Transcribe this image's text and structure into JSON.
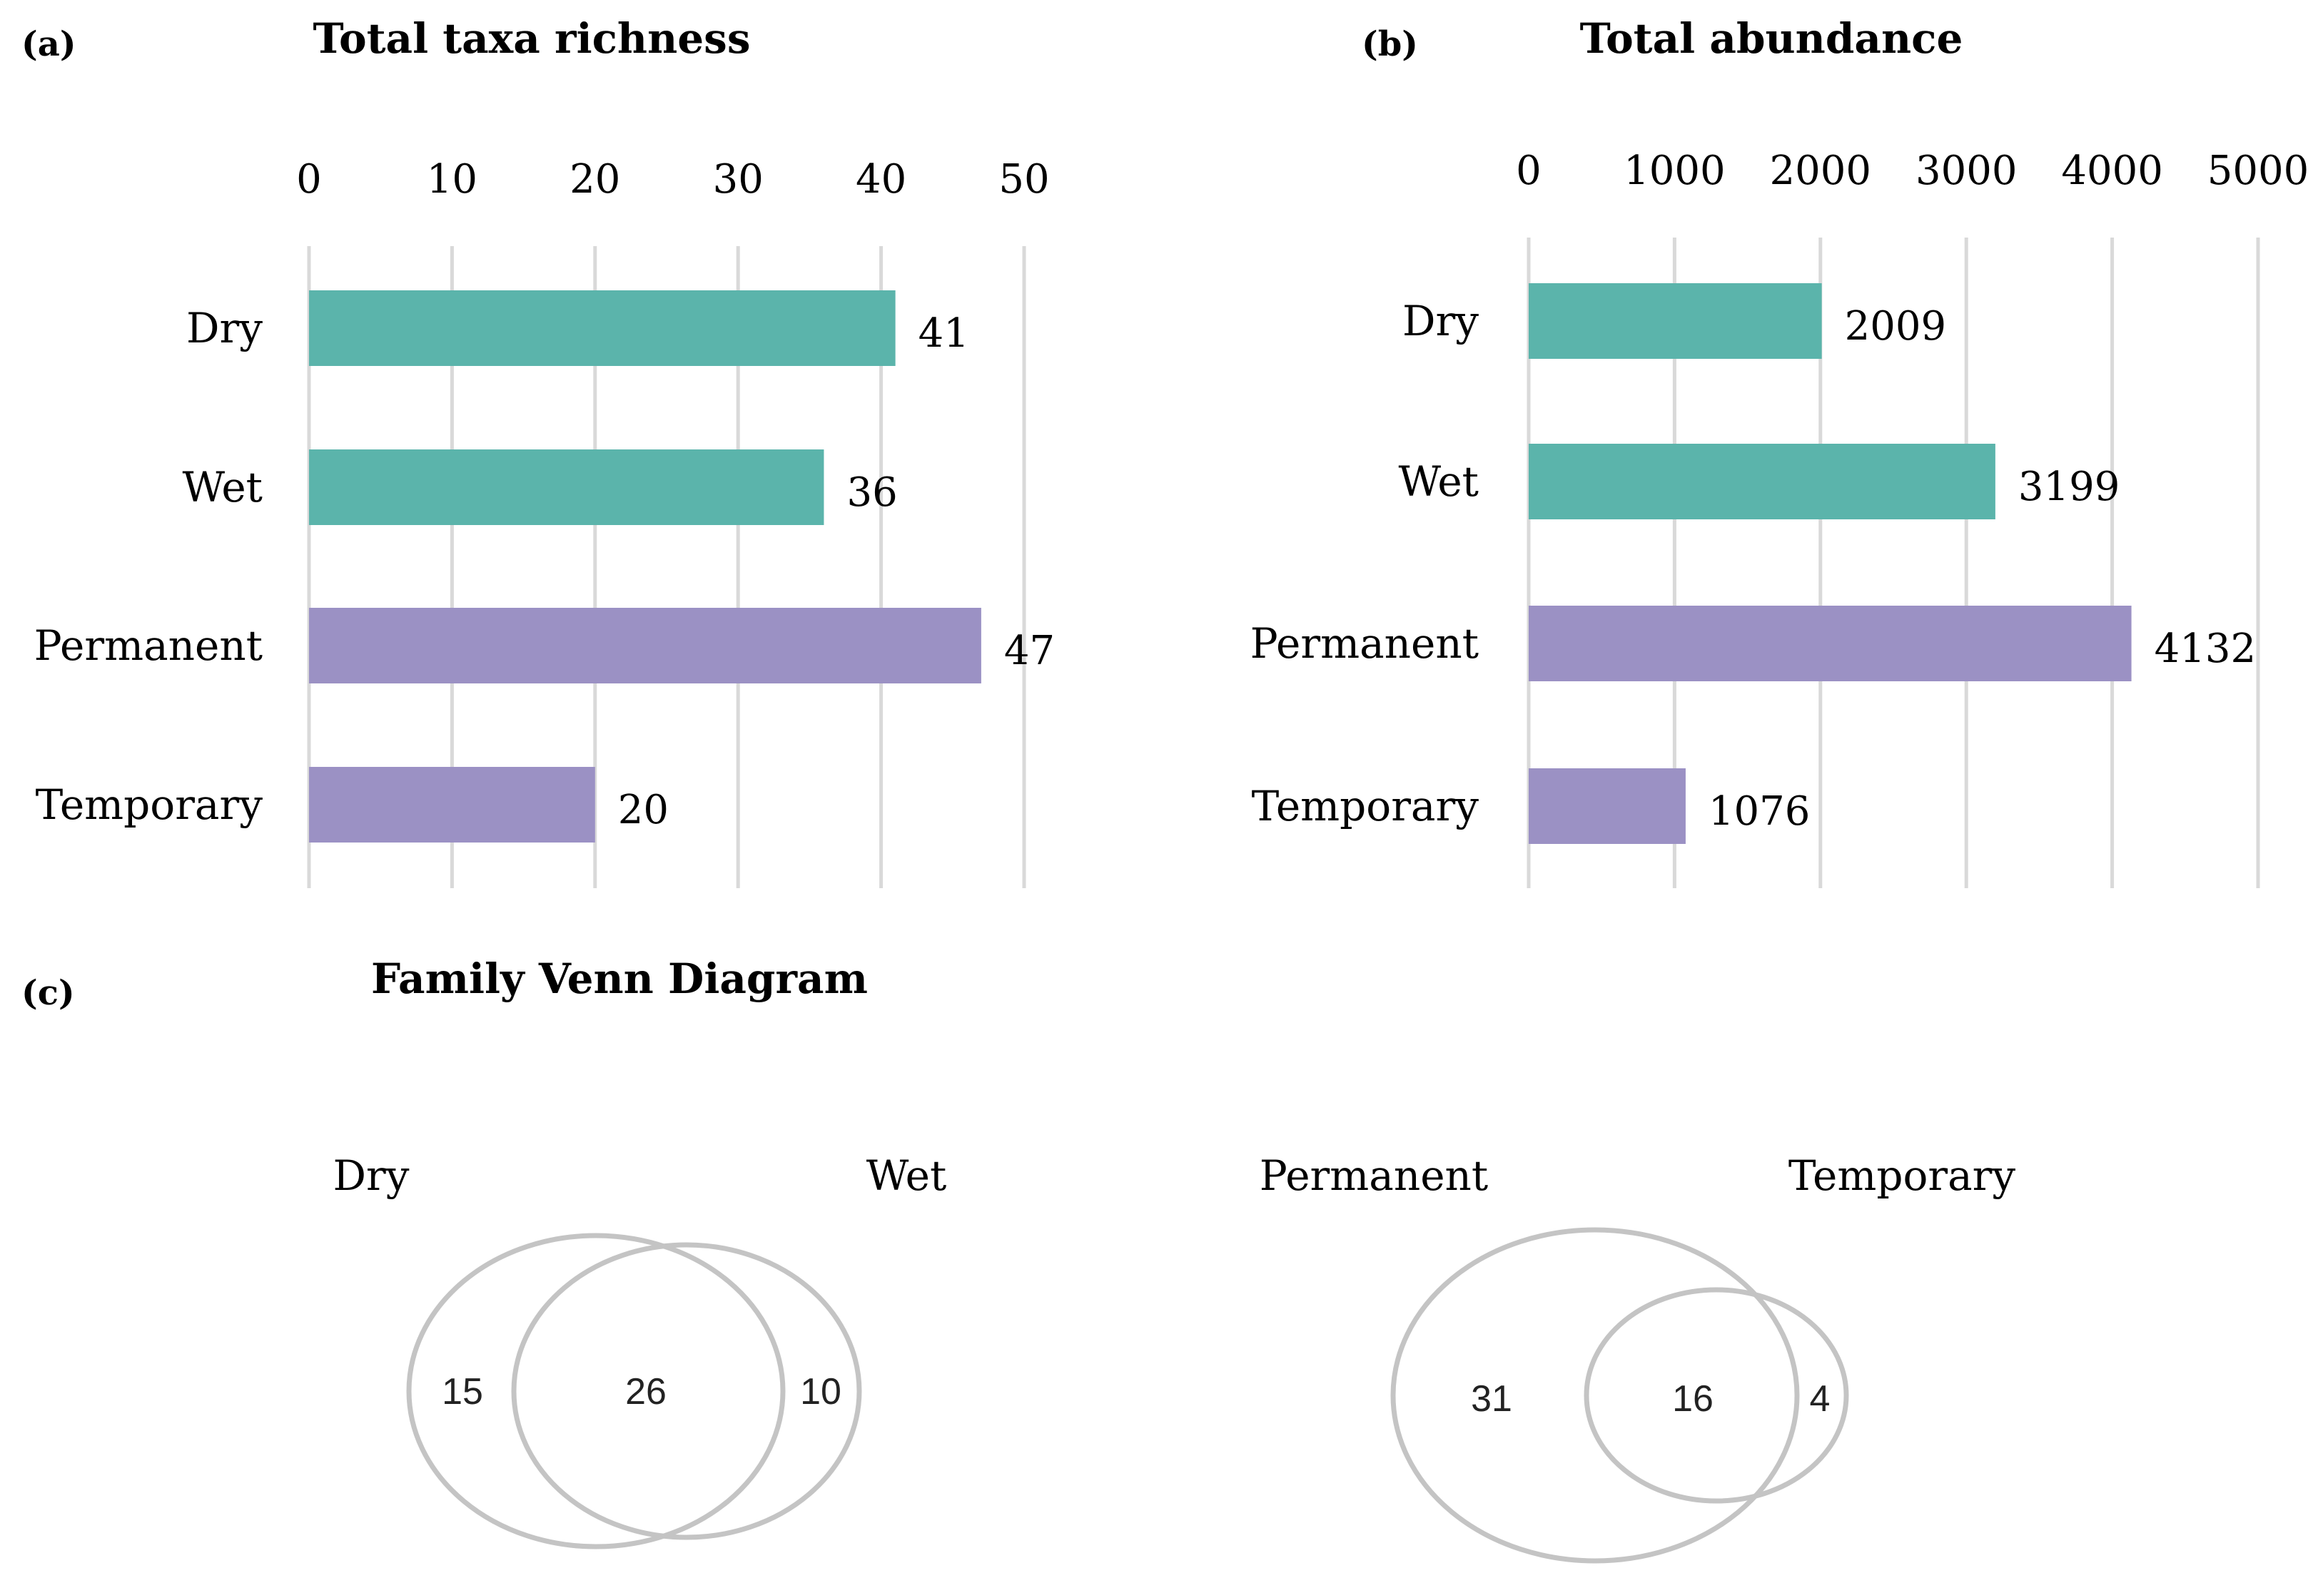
{
  "panel_labels": {
    "a": "(a)",
    "b": "(b)",
    "c": "(c)"
  },
  "venn_title": "Family Venn Diagram",
  "colors": {
    "season": "#5bb4ab",
    "hydro": "#9b91c4",
    "grid": "#d9d9d9",
    "venn": "#c4c4c4"
  },
  "chart_data": [
    {
      "type": "bar",
      "orientation": "horizontal",
      "title": "Total taxa richness",
      "categories": [
        "Dry",
        "Wet",
        "Permanent",
        "Temporary"
      ],
      "values": [
        41,
        36,
        47,
        20
      ],
      "bar_colors": [
        "#5bb4ab",
        "#5bb4ab",
        "#9b91c4",
        "#9b91c4"
      ],
      "xlim": [
        0,
        50
      ],
      "xticks": [
        0,
        10,
        20,
        30,
        40,
        50
      ],
      "xticks_position": "top",
      "grid": true
    },
    {
      "type": "bar",
      "orientation": "horizontal",
      "title": "Total abundance",
      "categories": [
        "Dry",
        "Wet",
        "Permanent",
        "Temporary"
      ],
      "values": [
        2009,
        3199,
        4132,
        1076
      ],
      "bar_colors": [
        "#5bb4ab",
        "#5bb4ab",
        "#9b91c4",
        "#9b91c4"
      ],
      "xlim": [
        0,
        5000
      ],
      "xticks": [
        0,
        1000,
        2000,
        3000,
        4000,
        5000
      ],
      "xticks_position": "top",
      "grid": true
    }
  ],
  "venns": [
    {
      "left_label": "Dry",
      "right_label": "Wet",
      "left_only": 15,
      "shared": 26,
      "right_only": 10
    },
    {
      "left_label": "Permanent",
      "right_label": "Temporary",
      "left_only": 31,
      "shared": 16,
      "right_only": 4
    }
  ]
}
